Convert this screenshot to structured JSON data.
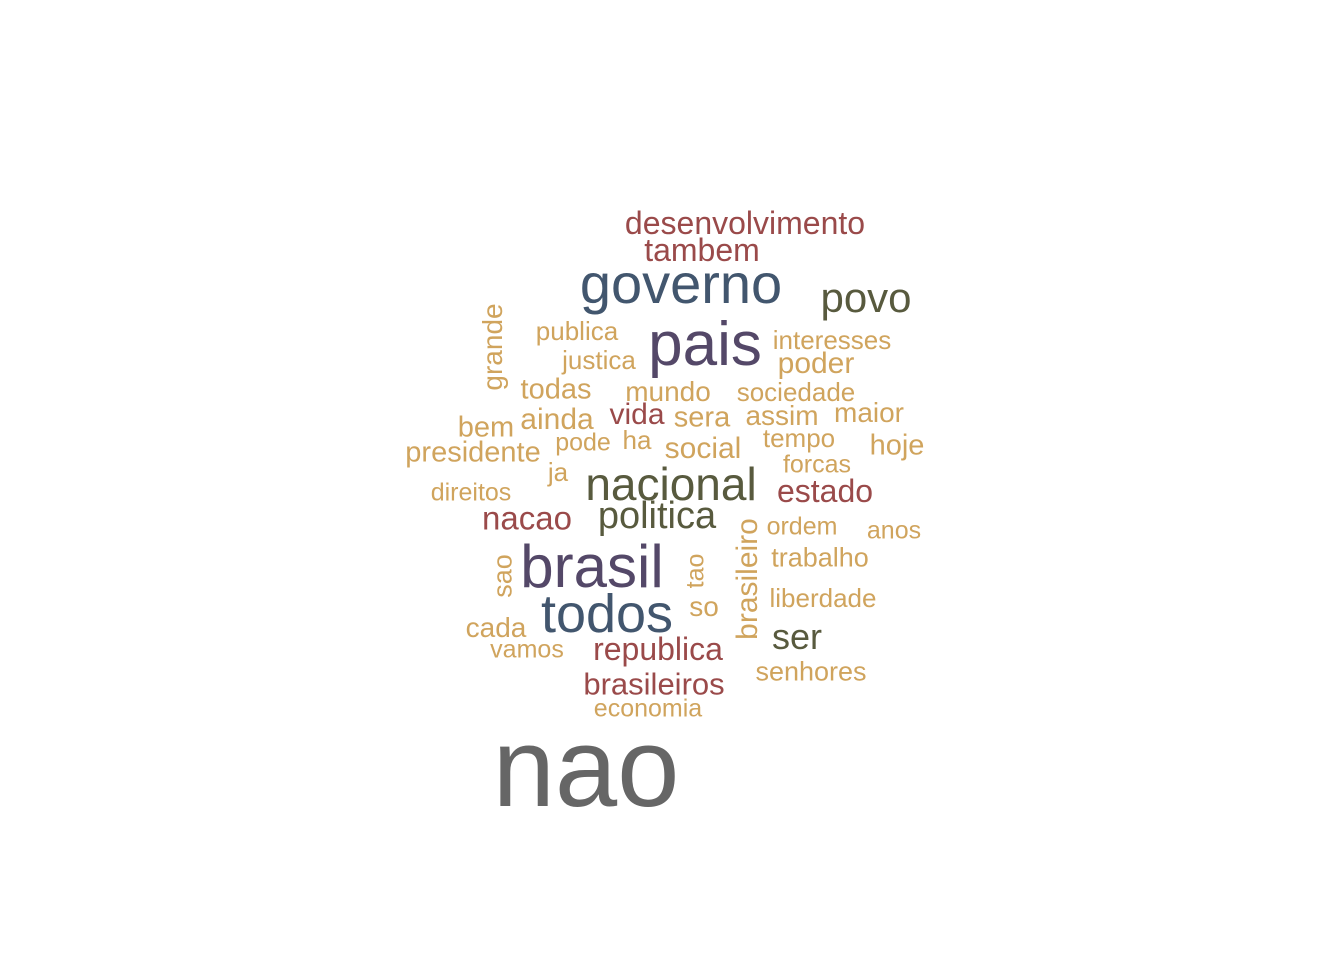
{
  "colors": {
    "gray": "#666666",
    "purple": "#544868",
    "blue": "#42566e",
    "olive": "#585a3e",
    "red": "#9a4a4a",
    "tan": "#d0a45d"
  },
  "words": [
    {
      "text": "nao",
      "color": "gray"
    },
    {
      "text": "pais",
      "color": "purple"
    },
    {
      "text": "brasil",
      "color": "purple"
    },
    {
      "text": "governo",
      "color": "blue"
    },
    {
      "text": "todos",
      "color": "blue"
    },
    {
      "text": "nacional",
      "color": "olive"
    },
    {
      "text": "povo",
      "color": "olive"
    },
    {
      "text": "politica",
      "color": "olive"
    },
    {
      "text": "ser",
      "color": "olive"
    },
    {
      "text": "desenvolvimento",
      "color": "red"
    },
    {
      "text": "tambem",
      "color": "red"
    },
    {
      "text": "nacao",
      "color": "red"
    },
    {
      "text": "estado",
      "color": "red"
    },
    {
      "text": "republica",
      "color": "red"
    },
    {
      "text": "brasileiros",
      "color": "red"
    },
    {
      "text": "vida",
      "color": "red"
    },
    {
      "text": "grande",
      "color": "tan"
    },
    {
      "text": "publica",
      "color": "tan"
    },
    {
      "text": "justica",
      "color": "tan"
    },
    {
      "text": "interesses",
      "color": "tan"
    },
    {
      "text": "poder",
      "color": "tan"
    },
    {
      "text": "todas",
      "color": "tan"
    },
    {
      "text": "mundo",
      "color": "tan"
    },
    {
      "text": "sociedade",
      "color": "tan"
    },
    {
      "text": "bem",
      "color": "tan"
    },
    {
      "text": "ainda",
      "color": "tan"
    },
    {
      "text": "sera",
      "color": "tan"
    },
    {
      "text": "assim",
      "color": "tan"
    },
    {
      "text": "maior",
      "color": "tan"
    },
    {
      "text": "presidente",
      "color": "tan"
    },
    {
      "text": "pode",
      "color": "tan"
    },
    {
      "text": "ha",
      "color": "tan"
    },
    {
      "text": "social",
      "color": "tan"
    },
    {
      "text": "tempo",
      "color": "tan"
    },
    {
      "text": "hoje",
      "color": "tan"
    },
    {
      "text": "ja",
      "color": "tan"
    },
    {
      "text": "forcas",
      "color": "tan"
    },
    {
      "text": "direitos",
      "color": "tan"
    },
    {
      "text": "ordem",
      "color": "tan"
    },
    {
      "text": "anos",
      "color": "tan"
    },
    {
      "text": "brasileiro",
      "color": "tan"
    },
    {
      "text": "sao",
      "color": "tan"
    },
    {
      "text": "tao",
      "color": "tan"
    },
    {
      "text": "trabalho",
      "color": "tan"
    },
    {
      "text": "so",
      "color": "tan"
    },
    {
      "text": "liberdade",
      "color": "tan"
    },
    {
      "text": "cada",
      "color": "tan"
    },
    {
      "text": "vamos",
      "color": "tan"
    },
    {
      "text": "senhores",
      "color": "tan"
    },
    {
      "text": "economia",
      "color": "tan"
    }
  ]
}
